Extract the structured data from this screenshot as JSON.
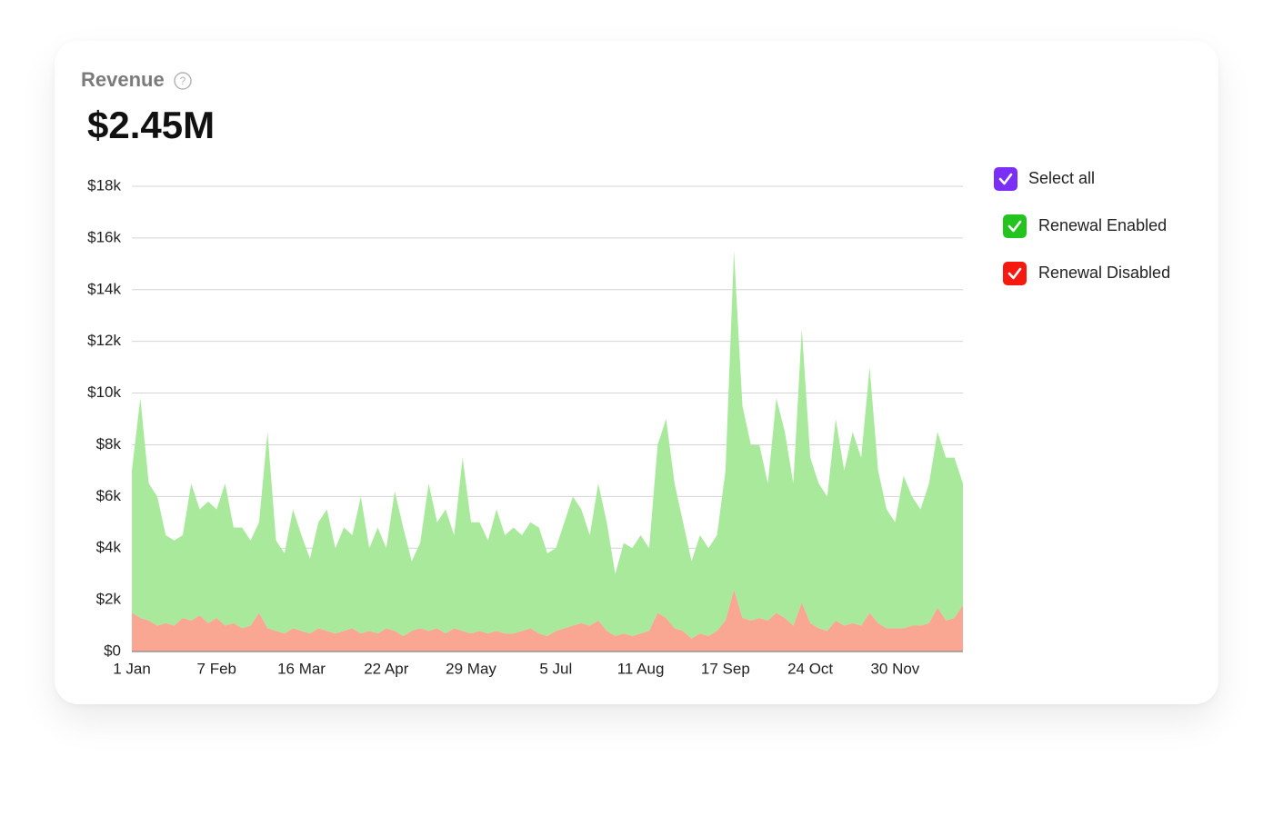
{
  "title": "Revenue",
  "headline": "$2.45M",
  "chart_data": {
    "type": "stacked_area",
    "categories": [
      "1 Jan",
      null,
      null,
      null,
      null,
      null,
      null,
      null,
      null,
      null,
      "7 Feb",
      null,
      null,
      null,
      null,
      null,
      null,
      null,
      null,
      null,
      "16 Mar",
      null,
      null,
      null,
      null,
      null,
      null,
      null,
      null,
      null,
      "22 Apr",
      null,
      null,
      null,
      null,
      null,
      null,
      null,
      null,
      null,
      "29 May",
      null,
      null,
      null,
      null,
      null,
      null,
      null,
      null,
      null,
      "5 Jul",
      null,
      null,
      null,
      null,
      null,
      null,
      null,
      null,
      null,
      "11 Aug",
      null,
      null,
      null,
      null,
      null,
      null,
      null,
      null,
      null,
      "17 Sep",
      null,
      null,
      null,
      null,
      null,
      null,
      null,
      null,
      null,
      "24 Oct",
      null,
      null,
      null,
      null,
      null,
      null,
      null,
      null,
      null,
      "30 Nov",
      null,
      null,
      null,
      null,
      null,
      null,
      null,
      null
    ],
    "series": [
      {
        "name": "Renewal Enabled",
        "color": "#a9e99c",
        "check_color": "#22c41d",
        "values": [
          5500,
          8500,
          5300,
          5000,
          3400,
          3300,
          3200,
          5300,
          4100,
          4700,
          4200,
          5500,
          3700,
          3900,
          3300,
          3500,
          7600,
          3500,
          3100,
          4600,
          3700,
          2900,
          4100,
          4700,
          3300,
          4000,
          3600,
          5300,
          3200,
          4100,
          3100,
          5400,
          4200,
          2700,
          3300,
          5700,
          4100,
          4800,
          3600,
          6700,
          4300,
          4200,
          3600,
          4700,
          3800,
          4100,
          3700,
          4100,
          4100,
          3200,
          3200,
          4100,
          5000,
          4400,
          3500,
          5300,
          4200,
          2400,
          3500,
          3400,
          3800,
          3200,
          6500,
          7700,
          5600,
          4200,
          3000,
          3800,
          3400,
          3700,
          5800,
          13100,
          8200,
          6800,
          6700,
          5300,
          8300,
          7200,
          5500,
          10600,
          6400,
          5600,
          5200,
          7800,
          6000,
          7400,
          6500,
          9500,
          5900,
          4600,
          4100,
          5900,
          5000,
          4500,
          5400,
          6800,
          6300,
          6200,
          4700
        ]
      },
      {
        "name": "Renewal Disabled",
        "color": "#f9a692",
        "check_color": "#f5190f",
        "values": [
          1500,
          1300,
          1200,
          1000,
          1100,
          1000,
          1300,
          1200,
          1400,
          1100,
          1300,
          1000,
          1100,
          900,
          1000,
          1500,
          900,
          800,
          700,
          900,
          800,
          700,
          900,
          800,
          700,
          800,
          900,
          700,
          800,
          700,
          900,
          800,
          600,
          800,
          900,
          800,
          900,
          700,
          900,
          800,
          700,
          800,
          700,
          800,
          700,
          700,
          800,
          900,
          700,
          600,
          800,
          900,
          1000,
          1100,
          1000,
          1200,
          800,
          600,
          700,
          600,
          700,
          800,
          1500,
          1300,
          900,
          800,
          500,
          700,
          600,
          800,
          1200,
          2400,
          1300,
          1200,
          1300,
          1200,
          1500,
          1300,
          1000,
          1900,
          1100,
          900,
          800,
          1200,
          1000,
          1100,
          1000,
          1500,
          1100,
          900,
          900,
          900,
          1000,
          1000,
          1100,
          1700,
          1200,
          1300,
          1800
        ]
      }
    ],
    "select_all": {
      "label": "Select all",
      "color": "#7b2ff6"
    },
    "ylim": [
      0,
      18000
    ],
    "yticks": [
      {
        "value": 0,
        "label": "$0"
      },
      {
        "value": 2000,
        "label": "$2k"
      },
      {
        "value": 4000,
        "label": "$4k"
      },
      {
        "value": 6000,
        "label": "$6k"
      },
      {
        "value": 8000,
        "label": "$8k"
      },
      {
        "value": 10000,
        "label": "$10k"
      },
      {
        "value": 12000,
        "label": "$12k"
      },
      {
        "value": 14000,
        "label": "$14k"
      },
      {
        "value": 16000,
        "label": "$16k"
      },
      {
        "value": 18000,
        "label": "$18k"
      }
    ],
    "grid": true
  }
}
